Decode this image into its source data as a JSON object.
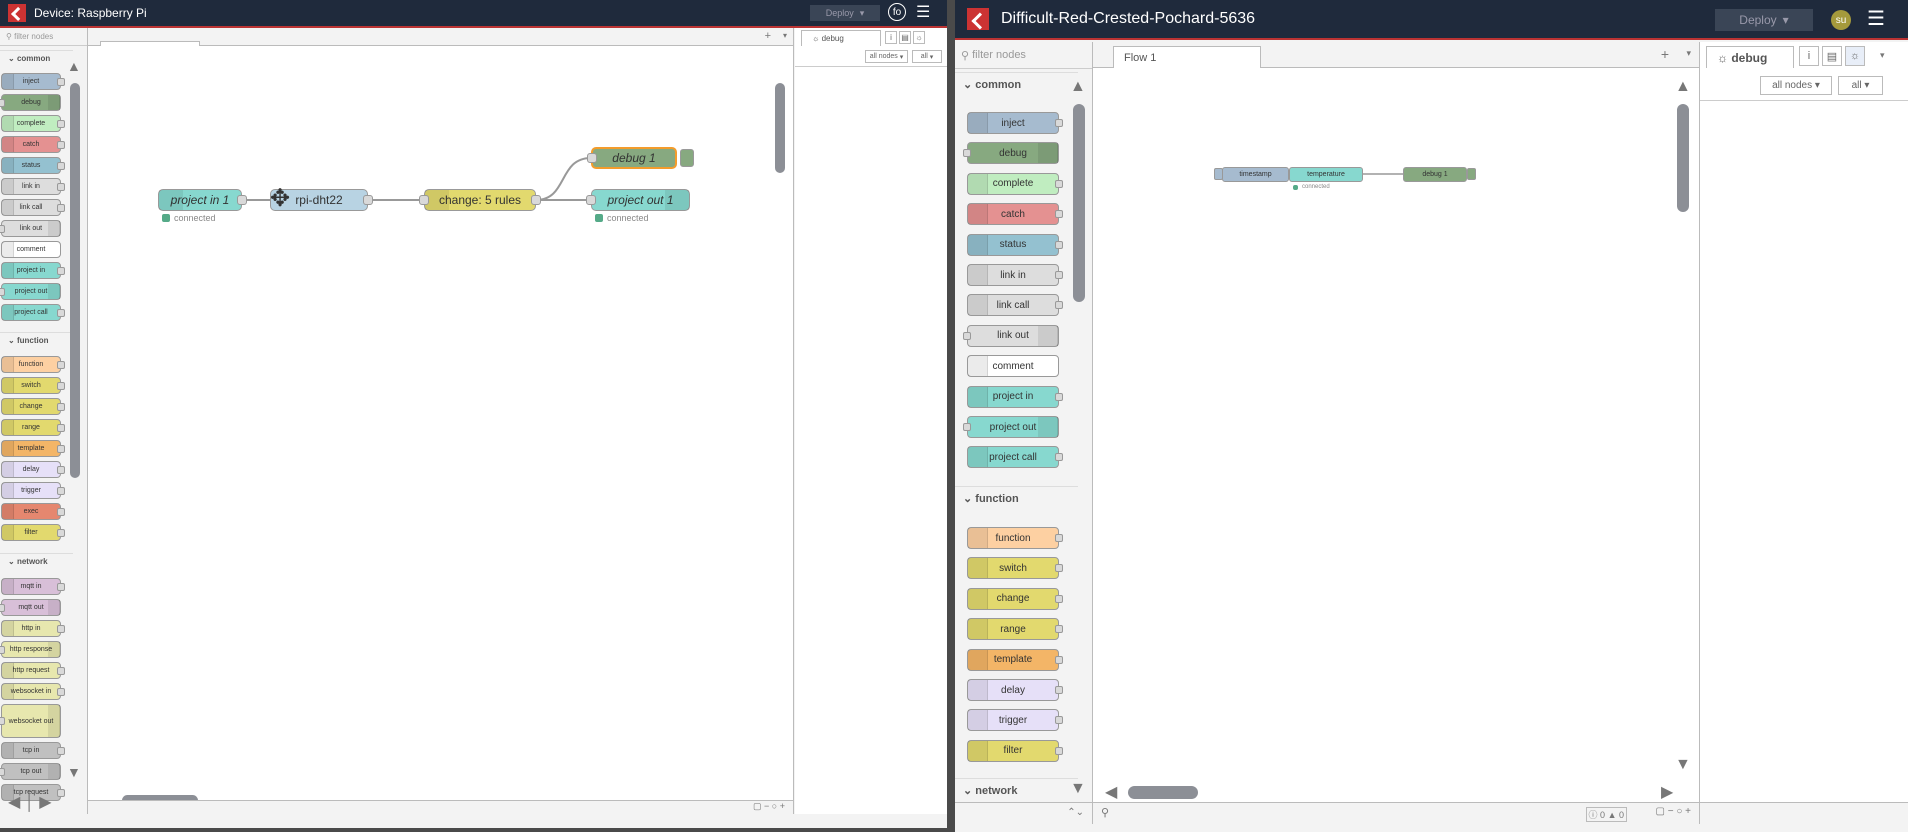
{
  "left_window": {
    "title": "Device: Raspberry Pi",
    "deploy_label": "Deploy",
    "avatar": "fo",
    "filter_placeholder": "filter nodes",
    "sections": {
      "common": "common",
      "function": "function",
      "network": "network"
    },
    "palette_common": [
      "inject",
      "debug",
      "complete",
      "catch",
      "status",
      "link in",
      "link call",
      "link out",
      "comment",
      "project in",
      "project out",
      "project call"
    ],
    "palette_function": [
      "function",
      "switch",
      "change",
      "range",
      "template",
      "delay",
      "trigger",
      "exec",
      "filter"
    ],
    "palette_network": [
      "mqtt in",
      "mqtt out",
      "http in",
      "http response",
      "http request",
      "websocket in",
      "websocket out",
      "tcp in",
      "tcp out",
      "tcp request"
    ],
    "flow_nodes": {
      "project_in": "project in 1",
      "rpi": "rpi-dht22",
      "change": "change: 5 rules",
      "debug": "debug 1",
      "project_out": "project out 1"
    },
    "status_connected": "connected",
    "sidebar_tab": "debug",
    "filter_all_nodes": "all nodes",
    "filter_all": "all"
  },
  "right_window": {
    "title": "Difficult-Red-Crested-Pochard-5636",
    "deploy_label": "Deploy",
    "avatar": "su",
    "filter_placeholder": "filter nodes",
    "flow_tab": "Flow 1",
    "sections": {
      "common": "common",
      "function": "function",
      "network": "network"
    },
    "palette_common": [
      "inject",
      "debug",
      "complete",
      "catch",
      "status",
      "link in",
      "link call",
      "link out",
      "comment",
      "project in",
      "project out",
      "project call"
    ],
    "palette_function": [
      "function",
      "switch",
      "change",
      "range",
      "template",
      "delay",
      "trigger",
      "filter"
    ],
    "flow_nodes": {
      "timestamp": "timestamp",
      "temperature": "temperature",
      "debug": "debug 1"
    },
    "status_connected": "connected",
    "sidebar_tab": "debug",
    "filter_all_nodes": "all nodes",
    "filter_all": "all",
    "footer_counts": {
      "info": "0",
      "warn": "0"
    }
  },
  "colors": {
    "header": "#1f2a3c",
    "accent": "#cc3333"
  }
}
